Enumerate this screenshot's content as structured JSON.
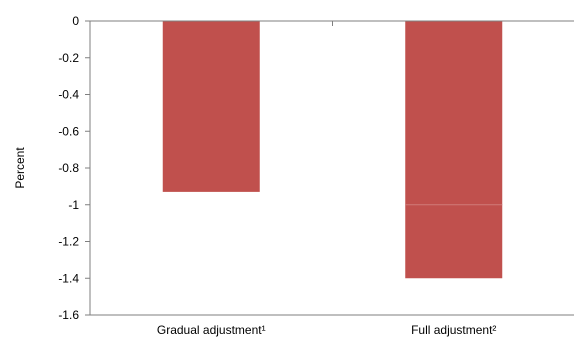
{
  "chart_data": {
    "type": "bar",
    "categories": [
      "Gradual adjustment¹",
      "Full adjustment²"
    ],
    "values": [
      -0.93,
      -1.4
    ],
    "ylabel": "Percent",
    "ylim": [
      -1.6,
      0
    ],
    "yticks": [
      "0",
      "-0.2",
      "-0.4",
      "-0.6",
      "-0.8",
      "-1",
      "-1.2",
      "-1.4",
      "-1.6"
    ],
    "grid": false,
    "bar_color": "#c0504d"
  }
}
